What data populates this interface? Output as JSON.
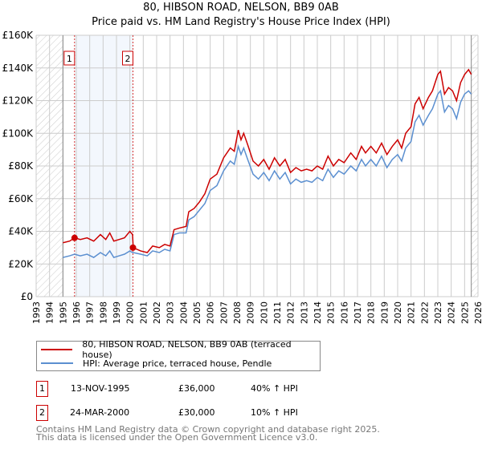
{
  "chart_data": {
    "type": "line",
    "title": "80, HIBSON ROAD, NELSON, BB9 0AB",
    "subtitle": "Price paid vs. HM Land Registry's House Price Index (HPI)",
    "xlim": [
      1993,
      2026
    ],
    "ylim": [
      0,
      160000
    ],
    "x_ticks": [
      "1993",
      "1994",
      "1995",
      "1996",
      "1997",
      "1998",
      "1999",
      "2000",
      "2001",
      "2002",
      "2003",
      "2004",
      "2005",
      "2006",
      "2007",
      "2008",
      "2009",
      "2010",
      "2011",
      "2012",
      "2013",
      "2014",
      "2015",
      "2016",
      "2017",
      "2018",
      "2019",
      "2020",
      "2021",
      "2022",
      "2023",
      "2024",
      "2025",
      "2026"
    ],
    "y_ticks": [
      {
        "v": 0,
        "label": "£0"
      },
      {
        "v": 20000,
        "label": "£20K"
      },
      {
        "v": 40000,
        "label": "£40K"
      },
      {
        "v": 60000,
        "label": "£60K"
      },
      {
        "v": 80000,
        "label": "£80K"
      },
      {
        "v": 100000,
        "label": "£100K"
      },
      {
        "v": 120000,
        "label": "£120K"
      },
      {
        "v": 140000,
        "label": "£140K"
      },
      {
        "v": 160000,
        "label": "£160K"
      }
    ],
    "grid": true,
    "hatched_before": 1995,
    "hatched_after": 2025.5,
    "series": [
      {
        "name": "80, HIBSON ROAD, NELSON, BB9 0AB (terraced house)",
        "color": "#cc0000",
        "x": [
          1995,
          1995.5,
          1995.87,
          1996.3,
          1996.8,
          1997.3,
          1997.8,
          1998.2,
          1998.5,
          1998.8,
          1999.2,
          1999.6,
          2000.0,
          2000.2,
          2000.25,
          2000.8,
          2001.3,
          2001.7,
          2002.2,
          2002.6,
          2003.0,
          2003.3,
          2003.7,
          2004.2,
          2004.4,
          2004.8,
          2005.2,
          2005.6,
          2006.0,
          2006.5,
          2007.0,
          2007.5,
          2007.8,
          2008.1,
          2008.3,
          2008.5,
          2008.8,
          2009.2,
          2009.6,
          2010.0,
          2010.4,
          2010.8,
          2011.2,
          2011.6,
          2012.0,
          2012.4,
          2012.8,
          2013.2,
          2013.6,
          2014.0,
          2014.4,
          2014.8,
          2015.2,
          2015.6,
          2016.0,
          2016.5,
          2016.9,
          2017.3,
          2017.6,
          2018.0,
          2018.4,
          2018.8,
          2019.2,
          2019.6,
          2020.0,
          2020.3,
          2020.6,
          2021.0,
          2021.3,
          2021.6,
          2021.9,
          2022.3,
          2022.6,
          2023.0,
          2023.2,
          2023.5,
          2023.8,
          2024.1,
          2024.4,
          2024.7,
          2025.0,
          2025.3,
          2025.5
        ],
        "y": [
          33000,
          34000,
          36000,
          35000,
          36000,
          34000,
          38000,
          35000,
          39000,
          34000,
          35000,
          36000,
          40000,
          38000,
          30000,
          28000,
          27000,
          31000,
          30000,
          32000,
          31000,
          41000,
          42000,
          43000,
          52000,
          54000,
          58000,
          63000,
          72000,
          75000,
          85000,
          91000,
          89000,
          102000,
          96000,
          100000,
          93000,
          83000,
          80000,
          84000,
          78000,
          85000,
          80000,
          84000,
          76000,
          79000,
          77000,
          78000,
          77000,
          80000,
          78000,
          86000,
          80000,
          84000,
          82000,
          88000,
          84000,
          92000,
          88000,
          92000,
          88000,
          94000,
          87000,
          92000,
          96000,
          91000,
          100000,
          104000,
          118000,
          122000,
          115000,
          122000,
          126000,
          136000,
          138000,
          124000,
          128000,
          126000,
          120000,
          131000,
          136000,
          139000,
          136000
        ]
      },
      {
        "name": "HPI: Average price, terraced house, Pendle",
        "color": "#5b8fd0",
        "x": [
          1995,
          1995.5,
          1995.87,
          1996.3,
          1996.8,
          1997.3,
          1997.8,
          1998.2,
          1998.5,
          1998.8,
          1999.2,
          1999.6,
          2000.0,
          2000.2,
          2000.25,
          2000.8,
          2001.3,
          2001.7,
          2002.2,
          2002.6,
          2003.0,
          2003.3,
          2003.7,
          2004.2,
          2004.4,
          2004.8,
          2005.2,
          2005.6,
          2006.0,
          2006.5,
          2007.0,
          2007.5,
          2007.8,
          2008.1,
          2008.3,
          2008.5,
          2008.8,
          2009.2,
          2009.6,
          2010.0,
          2010.4,
          2010.8,
          2011.2,
          2011.6,
          2012.0,
          2012.4,
          2012.8,
          2013.2,
          2013.6,
          2014.0,
          2014.4,
          2014.8,
          2015.2,
          2015.6,
          2016.0,
          2016.5,
          2016.9,
          2017.3,
          2017.6,
          2018.0,
          2018.4,
          2018.8,
          2019.2,
          2019.6,
          2020.0,
          2020.3,
          2020.6,
          2021.0,
          2021.3,
          2021.6,
          2021.9,
          2022.3,
          2022.6,
          2023.0,
          2023.2,
          2023.5,
          2023.8,
          2024.1,
          2024.4,
          2024.7,
          2025.0,
          2025.3,
          2025.5
        ],
        "y": [
          24000,
          25000,
          26000,
          25000,
          26000,
          24000,
          27000,
          25000,
          28000,
          24000,
          25000,
          26000,
          28000,
          27000,
          27000,
          26000,
          25000,
          28000,
          27000,
          29000,
          28000,
          38000,
          39000,
          39000,
          47000,
          49000,
          53000,
          57000,
          65000,
          68000,
          77000,
          83000,
          81000,
          92000,
          87000,
          91000,
          84000,
          75000,
          72000,
          76000,
          71000,
          77000,
          72000,
          76000,
          69000,
          72000,
          70000,
          71000,
          70000,
          73000,
          71000,
          78000,
          73000,
          77000,
          75000,
          80000,
          77000,
          84000,
          80000,
          84000,
          80000,
          86000,
          79000,
          84000,
          87000,
          83000,
          91000,
          95000,
          107000,
          111000,
          105000,
          111000,
          115000,
          124000,
          126000,
          113000,
          117000,
          115000,
          109000,
          119000,
          124000,
          126000,
          124000
        ]
      }
    ],
    "sales": [
      {
        "label": "1",
        "x": 1995.87,
        "y": 36000
      },
      {
        "label": "2",
        "x": 2000.23,
        "y": 30000
      }
    ],
    "annotation_color": "#cc0000"
  },
  "legend": {
    "items": [
      {
        "label": "80, HIBSON ROAD, NELSON, BB9 0AB (terraced house)",
        "color": "#cc0000"
      },
      {
        "label": "HPI: Average price, terraced house, Pendle",
        "color": "#5b8fd0"
      }
    ]
  },
  "transactions": [
    {
      "num": "1",
      "date": "13-NOV-1995",
      "price": "£36,000",
      "hpi": "40% ↑ HPI"
    },
    {
      "num": "2",
      "date": "24-MAR-2000",
      "price": "£30,000",
      "hpi": "10% ↑ HPI"
    }
  ],
  "footer": {
    "line1": "Contains HM Land Registry data © Crown copyright and database right 2025.",
    "line2": "This data is licensed under the Open Government Licence v3.0."
  }
}
